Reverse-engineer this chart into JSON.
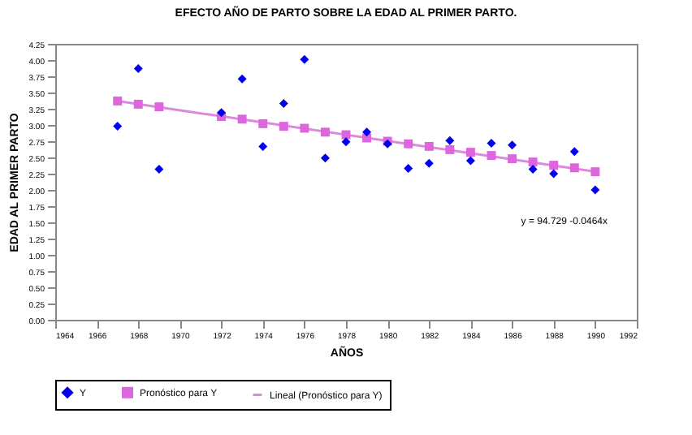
{
  "chart_data": {
    "type": "scatter",
    "title": "EFECTO AÑO DE PARTO SOBRE LA EDAD AL PRIMER PARTO.",
    "xlabel": "AÑOS",
    "ylabel": "EDAD AL PRIMER PARTO",
    "x": [
      1967,
      1968,
      1969,
      1972,
      1973,
      1974,
      1975,
      1976,
      1977,
      1978,
      1979,
      1980,
      1981,
      1982,
      1983,
      1984,
      1985,
      1986,
      1987,
      1988,
      1989,
      1990
    ],
    "series": [
      {
        "name": "Y",
        "color": "#0000ee",
        "marker": "diamond",
        "values": [
          2.98,
          3.87,
          2.32,
          3.19,
          3.71,
          2.67,
          3.33,
          4.01,
          2.49,
          2.74,
          2.89,
          2.71,
          2.33,
          2.41,
          2.76,
          2.45,
          2.72,
          2.69,
          2.32,
          2.25,
          2.59,
          2.0
        ]
      },
      {
        "name": "Pronóstico para Y",
        "color": "#dd66dd",
        "marker": "square",
        "values": [
          3.37,
          3.32,
          3.28,
          3.13,
          3.09,
          3.02,
          2.98,
          2.95,
          2.89,
          2.85,
          2.8,
          2.75,
          2.71,
          2.67,
          2.62,
          2.58,
          2.53,
          2.48,
          2.43,
          2.38,
          2.34,
          2.28
        ]
      },
      {
        "name": "Lineal (Pronóstico para Y)",
        "color": "#dd88dd",
        "type": "line",
        "x": [
          1967,
          1990
        ],
        "values": [
          3.37,
          2.28
        ]
      }
    ],
    "xlim": [
      1964,
      1992
    ],
    "xticks": [
      1964,
      1966,
      1968,
      1970,
      1972,
      1974,
      1976,
      1978,
      1980,
      1982,
      1984,
      1986,
      1988,
      1990,
      1992
    ],
    "ylim": [
      0,
      4.25
    ],
    "yticks": [
      {
        "value": 0,
        "label": "0.00"
      },
      {
        "value": 0.25,
        "label": "0.25"
      },
      {
        "value": 0.5,
        "label": "0.50"
      },
      {
        "value": 0.75,
        "label": "0.75"
      },
      {
        "value": 1,
        "label": "1.00"
      },
      {
        "value": 1.25,
        "label": "1.25"
      },
      {
        "value": 1.5,
        "label": "1.50"
      },
      {
        "value": 1.75,
        "label": "1.75"
      },
      {
        "value": 2,
        "label": "2.00"
      },
      {
        "value": 2.25,
        "label": "2.25"
      },
      {
        "value": 2.5,
        "label": "2.50"
      },
      {
        "value": 2.75,
        "label": "2.75"
      },
      {
        "value": 3,
        "label": "3.00"
      },
      {
        "value": 3.25,
        "label": "3.25"
      },
      {
        "value": 3.5,
        "label": "3.50"
      },
      {
        "value": 3.75,
        "label": "3.75"
      },
      {
        "value": 4,
        "label": "4.00"
      },
      {
        "value": 4.25,
        "label": "4.25"
      }
    ],
    "annotations": [
      "y = 94.729 -0.0464x"
    ],
    "grid": false,
    "legend": "bottom"
  }
}
